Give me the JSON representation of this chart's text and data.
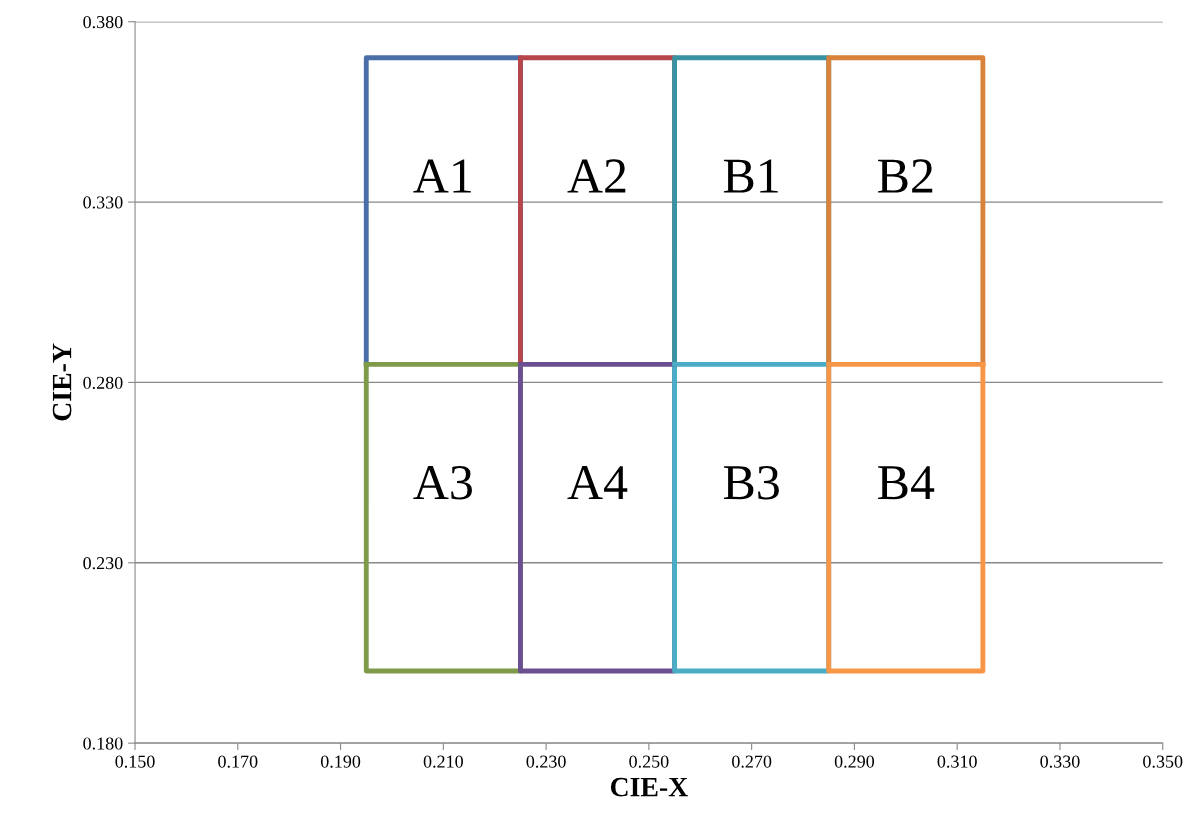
{
  "chart_data": {
    "type": "line",
    "xlabel": "CIE-X",
    "ylabel": "CIE-Y",
    "xlim": [
      0.15,
      0.35
    ],
    "ylim": [
      0.18,
      0.38
    ],
    "xticks": [
      {
        "value": 0.15,
        "label": "0.150"
      },
      {
        "value": 0.17,
        "label": "0.170"
      },
      {
        "value": 0.19,
        "label": "0.190"
      },
      {
        "value": 0.21,
        "label": "0.210"
      },
      {
        "value": 0.23,
        "label": "0.230"
      },
      {
        "value": 0.25,
        "label": "0.250"
      },
      {
        "value": 0.27,
        "label": "0.270"
      },
      {
        "value": 0.29,
        "label": "0.290"
      },
      {
        "value": 0.31,
        "label": "0.310"
      },
      {
        "value": 0.33,
        "label": "0.330"
      },
      {
        "value": 0.35,
        "label": "0.350"
      }
    ],
    "yticks": [
      {
        "value": 0.18,
        "label": "0.180"
      },
      {
        "value": 0.23,
        "label": "0.230"
      },
      {
        "value": 0.28,
        "label": "0.280"
      },
      {
        "value": 0.33,
        "label": "0.330"
      },
      {
        "value": 0.38,
        "label": "0.380"
      }
    ],
    "grid": "y",
    "legend": false,
    "marker": "none",
    "line_style": "solid",
    "series": [
      {
        "name": "A1",
        "color": "#4a6fa8",
        "x": [
          0.195,
          0.195,
          0.225,
          0.225
        ],
        "values": [
          0.285,
          0.37,
          0.37,
          0.285
        ]
      },
      {
        "name": "A2",
        "color": "#b5474a",
        "x": [
          0.225,
          0.225,
          0.255,
          0.255
        ],
        "values": [
          0.285,
          0.37,
          0.37,
          0.285
        ]
      },
      {
        "name": "B1",
        "color": "#3a93a3",
        "x": [
          0.255,
          0.255,
          0.285,
          0.285
        ],
        "values": [
          0.285,
          0.37,
          0.37,
          0.285
        ]
      },
      {
        "name": "B2",
        "color": "#d9823b",
        "x": [
          0.285,
          0.285,
          0.315,
          0.315
        ],
        "values": [
          0.285,
          0.37,
          0.37,
          0.285
        ]
      },
      {
        "name": "A3",
        "color": "#7f9a48",
        "x": [
          0.195,
          0.195,
          0.225,
          0.225
        ],
        "values": [
          0.285,
          0.2,
          0.2,
          0.285
        ]
      },
      {
        "name": "A4",
        "color": "#6a5090",
        "x": [
          0.225,
          0.225,
          0.255,
          0.255
        ],
        "values": [
          0.285,
          0.2,
          0.2,
          0.285
        ]
      },
      {
        "name": "B3",
        "color": "#4bacc6",
        "x": [
          0.255,
          0.255,
          0.285,
          0.285
        ],
        "values": [
          0.285,
          0.2,
          0.2,
          0.285
        ]
      },
      {
        "name": "B4",
        "color": "#f79646",
        "x": [
          0.285,
          0.285,
          0.315,
          0.315
        ],
        "values": [
          0.285,
          0.2,
          0.2,
          0.285
        ]
      },
      {
        "color": "#7f9a48",
        "x": [
          0.195,
          0.225
        ],
        "values": [
          0.285,
          0.285
        ]
      },
      {
        "color": "#6a5090",
        "x": [
          0.225,
          0.255
        ],
        "values": [
          0.285,
          0.285
        ]
      },
      {
        "color": "#4bacc6",
        "x": [
          0.255,
          0.285
        ],
        "values": [
          0.285,
          0.285
        ]
      },
      {
        "color": "#f79646",
        "x": [
          0.285,
          0.315
        ],
        "values": [
          0.285,
          0.285
        ]
      }
    ]
  }
}
